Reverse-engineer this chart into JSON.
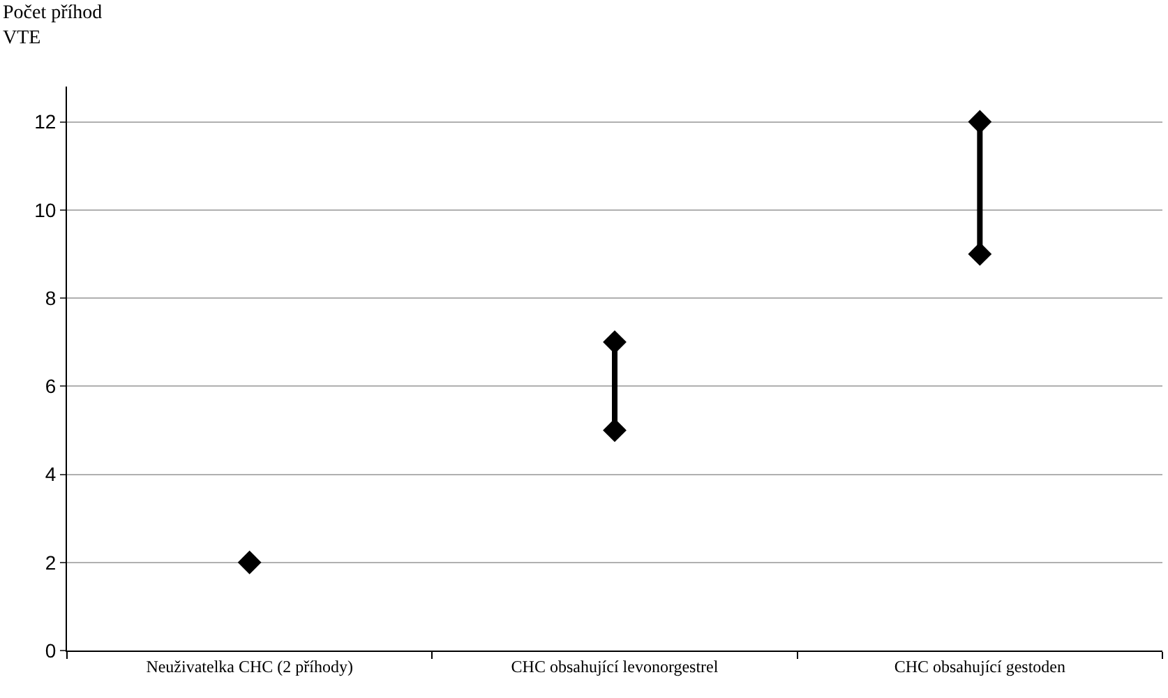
{
  "chart_data": {
    "type": "scatter",
    "ylabel": "Počet příhod\nVTE",
    "categories": [
      "Neuživatelka CHC (2 příhody)",
      "CHC obsahující levonorgestrel",
      "CHC obsahující gestoden"
    ],
    "series": [
      {
        "color": "#000000",
        "x": [
          "Neuživatelka CHC (2 příhody)"
        ],
        "values": [
          2
        ]
      },
      {
        "type": "line",
        "color": "#000000",
        "x": [
          "CHC obsahující levonorgestrel",
          "CHC obsahující levonorgestrel"
        ],
        "values": [
          5,
          7
        ]
      },
      {
        "type": "line",
        "color": "#000000",
        "x": [
          "CHC obsahující gestoden",
          "CHC obsahující gestoden"
        ],
        "values": [
          9,
          12
        ]
      }
    ],
    "marker": "diamond",
    "line_style": "solid",
    "ylim": [
      0,
      12.8
    ],
    "yticks": [
      0,
      2,
      4,
      6,
      8,
      10,
      12
    ],
    "grid": "y"
  }
}
